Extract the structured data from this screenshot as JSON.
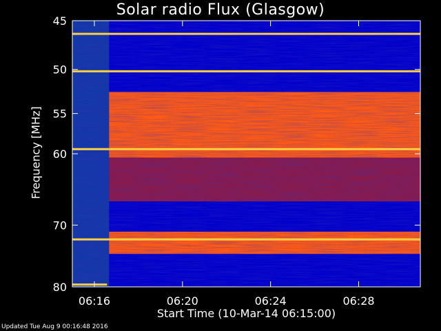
{
  "chart_data": {
    "type": "heatmap",
    "title": "Solar radio Flux (Glasgow)",
    "ylabel": "Frequency [MHz]",
    "xlabel": "Start Time (10-Mar-14 06:15:00)",
    "x_unit": "time (HH:MM)",
    "xlim": [
      "06:15:00",
      "06:30:48"
    ],
    "xticks": [
      "06:16",
      "06:20",
      "06:24",
      "06:28"
    ],
    "y_unit": "MHz",
    "y_scale": "log",
    "ylim": [
      45,
      80
    ],
    "yticks": [
      45,
      50,
      55,
      60,
      70,
      80
    ],
    "colormap": [
      "#0000cc",
      "#3b2fb5",
      "#8a1a4a",
      "#d81a1a",
      "#ff5a14",
      "#ffd040"
    ],
    "grid": false,
    "bright_bands_mhz": [
      {
        "freq": 46.3,
        "level": "high"
      },
      {
        "freq": 50.2,
        "level": "high"
      },
      {
        "freq": 59.4,
        "level": "high"
      },
      {
        "freq": 72.2,
        "level": "high"
      },
      {
        "freq": 79.6,
        "level": "high"
      }
    ],
    "emission_onset": "06:16:40",
    "emission_regions": [
      {
        "from": 52.5,
        "to": 60.5,
        "level": "high"
      },
      {
        "from": 71.0,
        "to": 74.5,
        "level": "high"
      },
      {
        "from": 60.5,
        "to": 66.5,
        "level": "medium"
      }
    ]
  },
  "footer": {
    "updated": "Updated Tue Aug  9 00:16:48 2016"
  }
}
